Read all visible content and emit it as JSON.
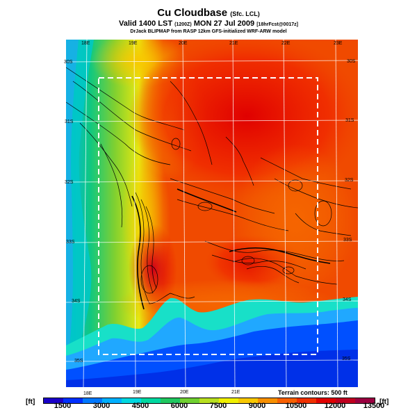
{
  "header": {
    "title": "Cu Cloudbase",
    "title_sub": "(Sfc. LCL)",
    "valid_main": "Valid 1400 LST",
    "valid_code": "(1200Z)",
    "valid_date": "MON 27 Jul 2009",
    "valid_tail": "[18hrFcst@0017z]",
    "model": "DrJack BLIPMAP from RASP 12km GFS-initialized WRF-ARW model"
  },
  "map": {
    "lon_labels_top": [
      "18E",
      "19E",
      "20E",
      "21E",
      "22E",
      "23E"
    ],
    "lon_labels_bottom": [
      "18E",
      "19E",
      "20E",
      "21E"
    ],
    "lat_labels_left": [
      "30S",
      "31S",
      "32S",
      "33S",
      "34S",
      "35S"
    ],
    "lat_labels_right": [
      "30S",
      "31S",
      "32S",
      "33S",
      "34S",
      "35S"
    ],
    "terrain_note": "Terrain contours: 500 ft"
  },
  "legend": {
    "unit_left": "[ft]",
    "unit_right": "[ft]",
    "ticks": [
      "1500",
      "3000",
      "4500",
      "6000",
      "7500",
      "9000",
      "10500",
      "12000",
      "13500"
    ],
    "colors": [
      "#1a00c8",
      "#0030ff",
      "#0078ff",
      "#00b0ff",
      "#00d8e0",
      "#00d8a0",
      "#20c860",
      "#70d030",
      "#b8e020",
      "#f0f000",
      "#f8c800",
      "#f89000",
      "#f86000",
      "#f03000",
      "#e00000",
      "#c00020",
      "#9a0040"
    ]
  }
}
